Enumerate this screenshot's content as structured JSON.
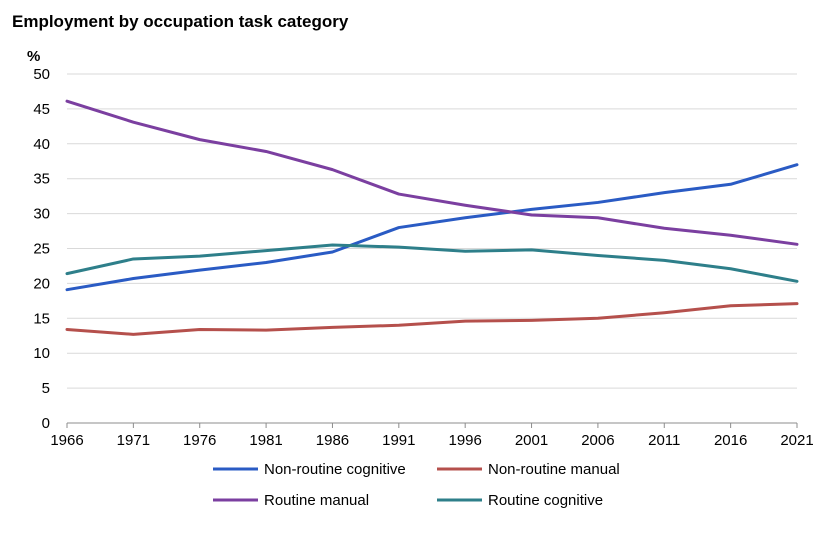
{
  "chart_data": {
    "type": "line",
    "title": "Employment by occupation task category",
    "ylabel": "%",
    "xlabel": "",
    "ylim": [
      0,
      50
    ],
    "yticks": [
      0,
      5,
      10,
      15,
      20,
      25,
      30,
      35,
      40,
      45,
      50
    ],
    "grid": true,
    "legend_position": "bottom",
    "x": [
      "1966",
      "1971",
      "1976",
      "1981",
      "1986",
      "1991",
      "1996",
      "2001",
      "2006",
      "2011",
      "2016",
      "2021"
    ],
    "series": [
      {
        "name": "Non-routine cognitive",
        "color": "#2a5bc4",
        "values": [
          19.1,
          20.7,
          21.9,
          23.0,
          24.5,
          28.0,
          29.4,
          30.6,
          31.6,
          33.0,
          34.2,
          37.0
        ]
      },
      {
        "name": "Non-routine manual",
        "color": "#b5504c",
        "values": [
          13.4,
          12.7,
          13.4,
          13.3,
          13.7,
          14.0,
          14.6,
          14.7,
          15.0,
          15.8,
          16.8,
          17.1
        ]
      },
      {
        "name": "Routine manual",
        "color": "#7b3fa0",
        "values": [
          46.1,
          43.1,
          40.6,
          38.9,
          36.3,
          32.8,
          31.2,
          29.8,
          29.4,
          27.9,
          26.9,
          25.6
        ]
      },
      {
        "name": "Routine cognitive",
        "color": "#2e7f8a",
        "values": [
          21.4,
          23.5,
          23.9,
          24.7,
          25.5,
          25.2,
          24.6,
          24.8,
          24.0,
          23.3,
          22.1,
          20.3
        ]
      }
    ]
  }
}
